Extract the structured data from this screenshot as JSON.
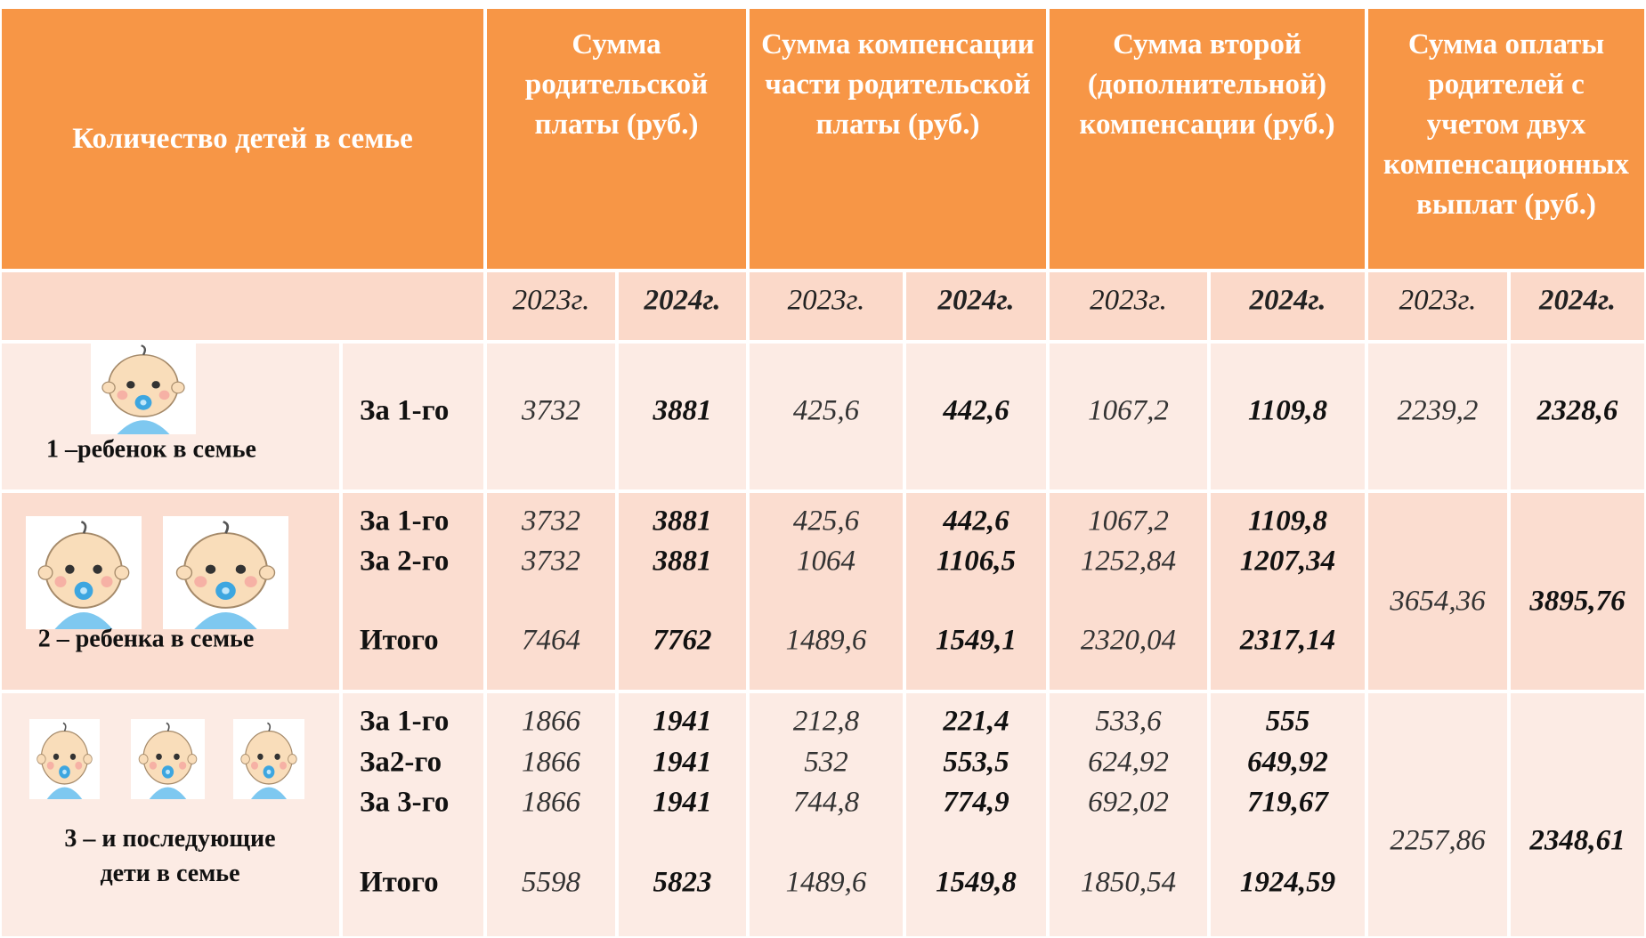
{
  "table": {
    "header": [
      "Количество детей в семье",
      "Сумма родительской платы (руб.)",
      "Сумма компенсации части родительской платы (руб.)",
      "Сумма второй (дополнительной) компенсации (руб.)",
      "Сумма оплаты родителей с учетом двух компенсационных выплат (руб.)"
    ],
    "years": [
      "2023г.",
      "2024г."
    ],
    "groups": [
      {
        "label": "1 –ребенок в семье",
        "rows": [
          {
            "label": "За 1-го",
            "values": [
              "3732",
              "3881",
              "425,6",
              "442,6",
              "1067,2",
              "1109,8"
            ]
          }
        ],
        "payment": [
          "2239,2",
          "2328,6"
        ]
      },
      {
        "label": "2 – ребенка в семье",
        "rows": [
          {
            "label": "За 1-го",
            "values": [
              "3732",
              "3881",
              "425,6",
              "442,6",
              "1067,2",
              "1109,8"
            ]
          },
          {
            "label": "За 2-го",
            "values": [
              "3732",
              "3881",
              "1064",
              "1106,5",
              "1252,84",
              "1207,34"
            ]
          },
          {
            "label": "Итого",
            "values": [
              "7464",
              "7762",
              "1489,6",
              "1549,1",
              "2320,04",
              "2317,14"
            ]
          }
        ],
        "payment": [
          "3654,36",
          "3895,76"
        ]
      },
      {
        "label": "3 – и последующие дети в семье",
        "rows": [
          {
            "label": "За 1-го",
            "values": [
              "1866",
              "1941",
              "212,8",
              "221,4",
              "533,6",
              "555"
            ]
          },
          {
            "label": "За2-го",
            "values": [
              "1866",
              "1941",
              "532",
              "553,5",
              "624,92",
              "649,92"
            ]
          },
          {
            "label": "За 3-го",
            "values": [
              "1866",
              "1941",
              "744,8",
              "774,9",
              "692,02",
              "719,67"
            ]
          },
          {
            "label": "Итого",
            "values": [
              "5598",
              "5823",
              "1489,6",
              "1549,8",
              "1850,54",
              "1924,59"
            ]
          }
        ],
        "payment": [
          "2257,86",
          "2348,61"
        ]
      }
    ]
  }
}
